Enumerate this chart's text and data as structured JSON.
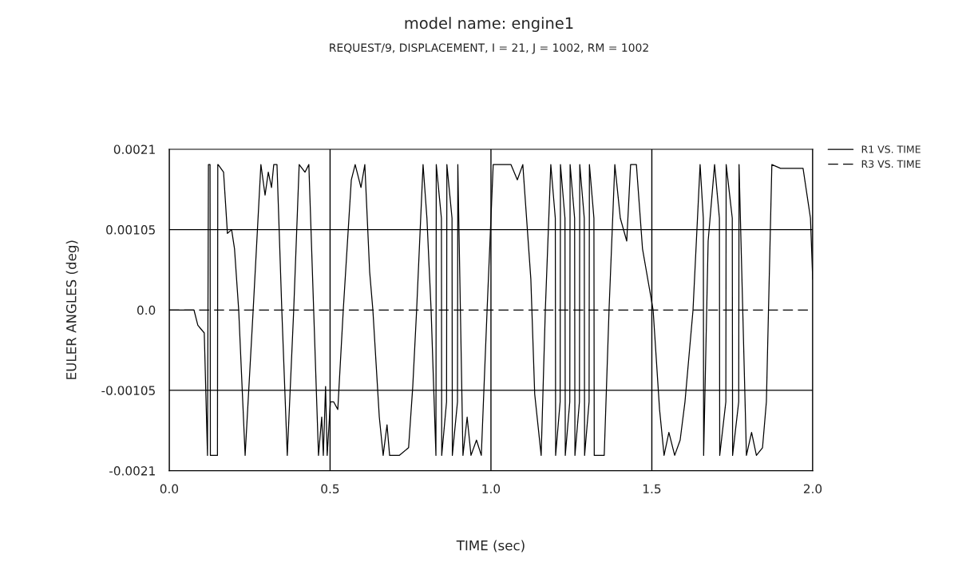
{
  "chart_data": {
    "type": "line",
    "title": "model name: engine1",
    "subtitle": "REQUEST/9, DISPLACEMENT, I = 21, J = 1002, RM = 1002",
    "xlabel": "TIME (sec)",
    "ylabel": "EULER ANGLES (deg)",
    "xlim": [
      0,
      2
    ],
    "ylim": [
      -0.0021,
      0.0021
    ],
    "xticks": [
      {
        "value": 0,
        "label": "0.0"
      },
      {
        "value": 0.5,
        "label": "0.5"
      },
      {
        "value": 1,
        "label": "1.0"
      },
      {
        "value": 1.5,
        "label": "1.5"
      },
      {
        "value": 2,
        "label": "2.0"
      }
    ],
    "yticks": [
      {
        "value": -0.0021,
        "label": "-0.0021"
      },
      {
        "value": -0.00105,
        "label": "-0.00105"
      },
      {
        "value": 0,
        "label": "0.0"
      },
      {
        "value": 0.00105,
        "label": "0.00105"
      },
      {
        "value": 0.0021,
        "label": "0.0021"
      }
    ],
    "grid": "x",
    "legend": "top right",
    "ref_lines": [
      {
        "axis": "y",
        "value": 0.00105,
        "color": "#000000",
        "line_style": "solid"
      },
      {
        "axis": "y",
        "value": -0.00105,
        "color": "#000000",
        "line_style": "solid"
      }
    ],
    "series": [
      {
        "name": "R1 VS. TIME",
        "color": "#000000",
        "line_style": "solid",
        "x": [
          0,
          0.077,
          0.089,
          0.099,
          0.109,
          0.119,
          0.122,
          0.127,
          0.128,
          0.15,
          0.151,
          0.152,
          0.169,
          0.181,
          0.194,
          0.203,
          0.216,
          0.236,
          0.261,
          0.285,
          0.298,
          0.308,
          0.318,
          0.325,
          0.335,
          0.35,
          0.367,
          0.387,
          0.404,
          0.422,
          0.434,
          0.449,
          0.464,
          0.474,
          0.479,
          0.486,
          0.491,
          0.501,
          0.511,
          0.524,
          0.541,
          0.566,
          0.578,
          0.596,
          0.608,
          0.623,
          0.633,
          0.653,
          0.665,
          0.677,
          0.685,
          0.715,
          0.744,
          0.757,
          0.769,
          0.789,
          0.801,
          0.814,
          0.829,
          0.83,
          0.846,
          0.847,
          0.862,
          0.863,
          0.879,
          0.88,
          0.896,
          0.897,
          0.913,
          0.926,
          0.938,
          0.955,
          0.97,
          0.988,
          1.007,
          1.025,
          1.062,
          1.082,
          1.099,
          1.124,
          1.136,
          1.156,
          1.169,
          1.186,
          1.2,
          1.201,
          1.215,
          1.216,
          1.23,
          1.231,
          1.245,
          1.246,
          1.26,
          1.261,
          1.275,
          1.276,
          1.29,
          1.291,
          1.305,
          1.306,
          1.32,
          1.321,
          1.352,
          1.367,
          1.385,
          1.402,
          1.422,
          1.434,
          1.452,
          1.471,
          1.504,
          1.524,
          1.538,
          1.553,
          1.571,
          1.588,
          1.603,
          1.628,
          1.65,
          1.66,
          1.661,
          1.675,
          1.695,
          1.71,
          1.711,
          1.73,
          1.731,
          1.75,
          1.751,
          1.77,
          1.771,
          1.794,
          1.81,
          1.825,
          1.844,
          1.856,
          1.873,
          1.9,
          1.93,
          1.97,
          1.993,
          2.0
        ],
        "values": [
          0,
          0,
          -0.0002,
          -0.00025,
          -0.0003,
          -0.0019,
          0.0019,
          0.0019,
          -0.0019,
          -0.0019,
          0.0019,
          0.0019,
          0.0018,
          0.001,
          0.00105,
          0.0008,
          0,
          -0.0019,
          0,
          0.0019,
          0.0015,
          0.0018,
          0.0016,
          0.0019,
          0.0019,
          0,
          -0.0019,
          0,
          0.0019,
          0.0018,
          0.0019,
          0,
          -0.0019,
          -0.0014,
          -0.0019,
          -0.001,
          -0.0019,
          -0.0012,
          -0.0012,
          -0.0013,
          0,
          0.0017,
          0.0019,
          0.0016,
          0.0019,
          0.0005,
          0,
          -0.0014,
          -0.0019,
          -0.0015,
          -0.0019,
          -0.0019,
          -0.0018,
          -0.001,
          0,
          0.0019,
          0.0012,
          0,
          -0.0019,
          0.0019,
          0.0012,
          -0.0019,
          -0.0012,
          0.0019,
          0.0012,
          -0.0019,
          -0.0012,
          0.0019,
          -0.0019,
          -0.0014,
          -0.0019,
          -0.0017,
          -0.0019,
          0,
          0.0019,
          0.0019,
          0.0019,
          0.0017,
          0.0019,
          0.0004,
          -0.0011,
          -0.0019,
          0,
          0.0019,
          0.0012,
          -0.0019,
          -0.0012,
          0.0019,
          0.0012,
          -0.0019,
          -0.0012,
          0.0019,
          0.0012,
          -0.0019,
          -0.0012,
          0.0019,
          0.0012,
          -0.0019,
          -0.0012,
          0.0019,
          0.0012,
          -0.0019,
          -0.0019,
          0,
          0.0019,
          0.0012,
          0.0009,
          0.0019,
          0.0019,
          0.0008,
          0,
          -0.0013,
          -0.0019,
          -0.0016,
          -0.0019,
          -0.0017,
          -0.0012,
          0,
          0.0019,
          0.0012,
          -0.0019,
          0.0009,
          0.0019,
          0.0012,
          -0.0019,
          -0.0012,
          0.0019,
          0.0012,
          -0.0019,
          -0.0012,
          0.0019,
          -0.0019,
          -0.0016,
          -0.0019,
          -0.0018,
          -0.0012,
          0.0019,
          0.00185,
          0.00185,
          0.00185,
          0.0012,
          0.0004
        ]
      },
      {
        "name": "R3 VS. TIME",
        "color": "#000000",
        "line_style": "dashed",
        "x": [
          0,
          2
        ],
        "values": [
          0,
          0
        ]
      }
    ]
  }
}
